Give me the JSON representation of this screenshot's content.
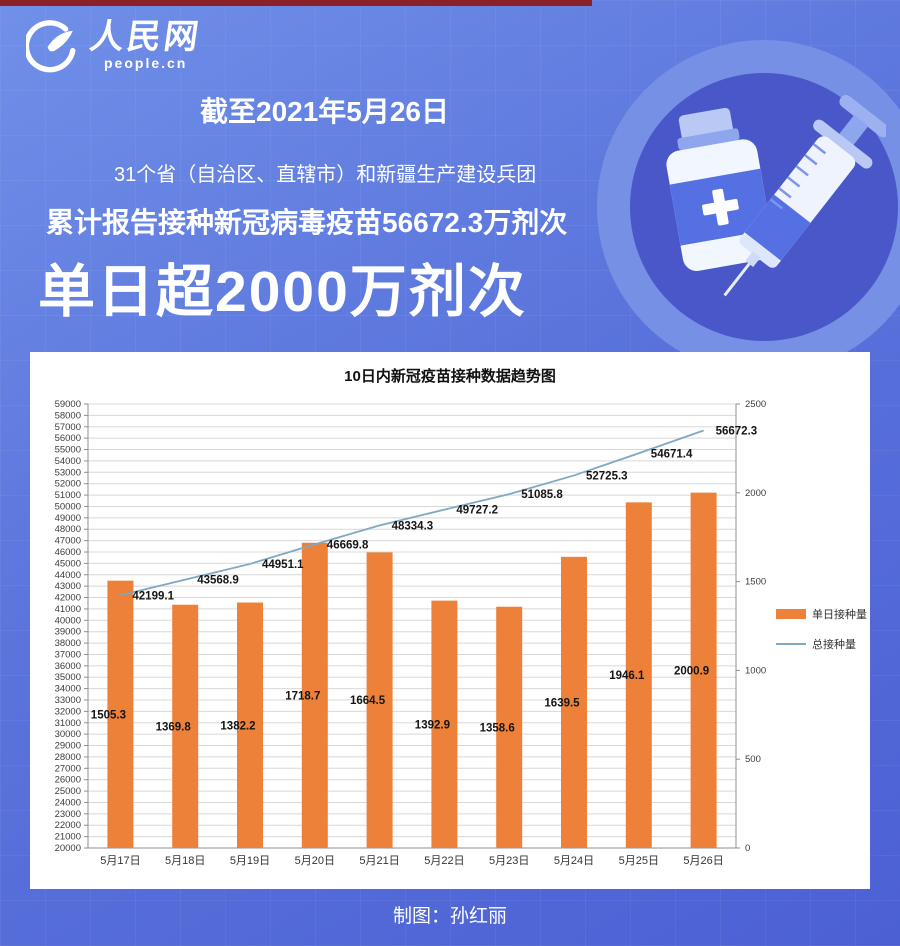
{
  "header": {
    "logo_title": "人民网",
    "logo_subtitle": "people.cn",
    "date_badge": "截至2021年5月26日",
    "region_line": "31个省（自治区、直辖市）和新疆生产建设兵团",
    "cumulative_line": "累计报告接种新冠病毒疫苗56672.3万剂次",
    "headline": "单日超2000万剂次"
  },
  "chart_data": {
    "type": "bar",
    "title": "10日内新冠疫苗接种数据趋势图",
    "categories": [
      "5月17日",
      "5月18日",
      "5月19日",
      "5月20日",
      "5月21日",
      "5月22日",
      "5月23日",
      "5月24日",
      "5月25日",
      "5月26日"
    ],
    "series": [
      {
        "name": "单日接种量",
        "type": "bar",
        "axis": "right",
        "color": "#ED8139",
        "values": [
          1505.3,
          1369.8,
          1382.2,
          1718.7,
          1664.5,
          1392.9,
          1358.6,
          1639.5,
          1946.1,
          2000.9
        ]
      },
      {
        "name": "总接种量",
        "type": "line",
        "axis": "left",
        "color": "#7FA8C2",
        "values": [
          42199.1,
          43568.9,
          44951.1,
          46669.8,
          48334.3,
          49727.2,
          51085.8,
          52725.3,
          54671.4,
          56672.3
        ]
      }
    ],
    "left_axis": {
      "min": 20000,
      "max": 59000,
      "step": 1000
    },
    "right_axis": {
      "min": 0,
      "max": 2500,
      "step": 500
    },
    "legend_position": "right",
    "grid": true
  },
  "footer": {
    "credit": "制图：孙红丽"
  },
  "colors": {
    "background_top": "#7090e8",
    "background_bottom": "#4c60d4",
    "top_strip": "#8a2126",
    "bar": "#ED8139",
    "line": "#7FA8C2",
    "panel": "#ffffff"
  }
}
